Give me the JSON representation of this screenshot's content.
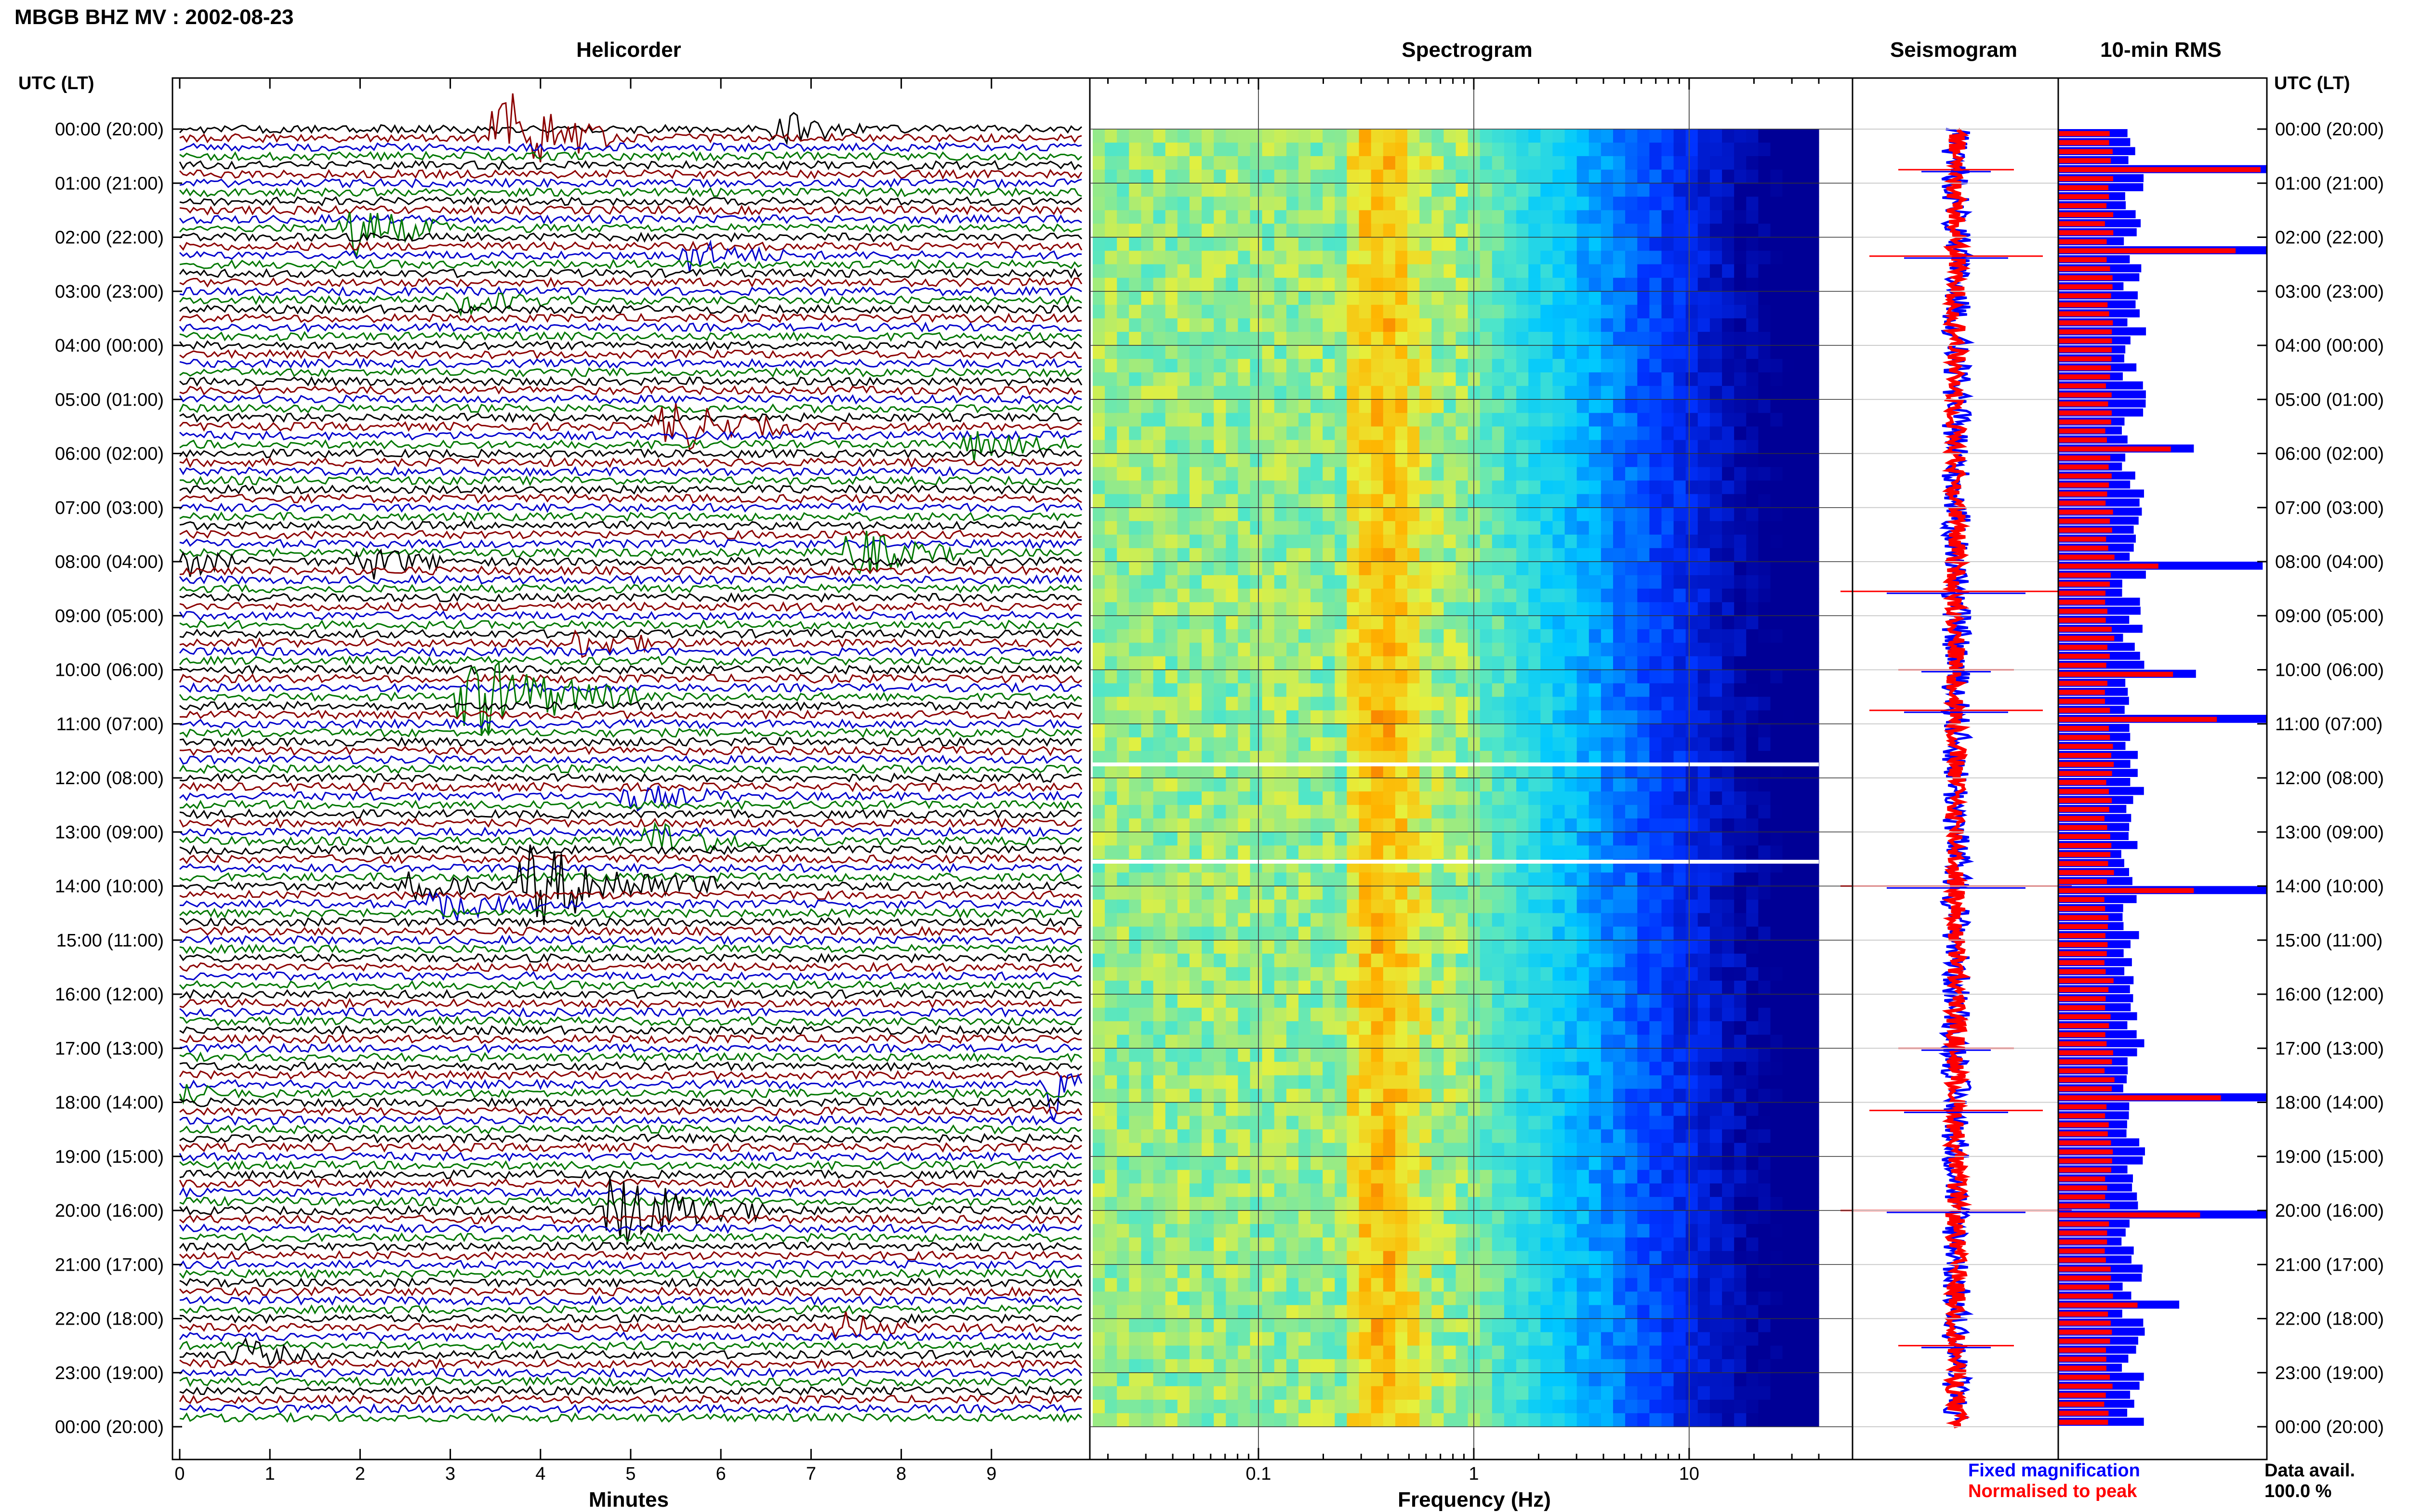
{
  "title": "MBGB BHZ MV : 2002-08-23",
  "utc_label": "UTC (LT)",
  "colors": {
    "trace_cycle": [
      "#000000",
      "#8b0000",
      "#0000cc",
      "#007700"
    ],
    "fixed_magnification": "#0000ff",
    "normalised_to_peak": "#ff0000",
    "grid": "#888888",
    "gap_line": "#ffffff"
  },
  "chart_data": [
    {
      "type": "line",
      "panel": "helicorder",
      "title": "Helicorder",
      "xlabel": "Minutes",
      "xlim": [
        0,
        10
      ],
      "x_ticks": [
        "0",
        "1",
        "2",
        "3",
        "4",
        "5",
        "6",
        "7",
        "8",
        "9"
      ],
      "rows_per_hour": 6,
      "row_minutes": 10,
      "time_labels": [
        "00:00 (20:00)",
        "01:00 (21:00)",
        "02:00 (22:00)",
        "03:00 (23:00)",
        "04:00 (00:00)",
        "05:00 (01:00)",
        "06:00 (02:00)",
        "07:00 (03:00)",
        "08:00 (04:00)",
        "09:00 (05:00)",
        "10:00 (06:00)",
        "11:00 (07:00)",
        "12:00 (08:00)",
        "13:00 (09:00)",
        "14:00 (10:00)",
        "15:00 (11:00)",
        "16:00 (12:00)",
        "17:00 (13:00)",
        "18:00 (14:00)",
        "19:00 (15:00)",
        "20:00 (16:00)",
        "21:00 (17:00)",
        "22:00 (18:00)",
        "23:00 (19:00)",
        "00:00 (20:00)"
      ],
      "events": [
        {
          "row": 0,
          "minute": 6.6,
          "duration_min": 1.0,
          "amplitude": 1.2
        },
        {
          "row": 1,
          "minute": 3.5,
          "duration_min": 1.3,
          "amplitude": 3.5
        },
        {
          "row": 11,
          "minute": 1.8,
          "duration_min": 1.2,
          "amplitude": 2.0
        },
        {
          "row": 14,
          "minute": 5.5,
          "duration_min": 1.2,
          "amplitude": 1.2
        },
        {
          "row": 19,
          "minute": 3.0,
          "duration_min": 1.2,
          "amplitude": 0.9
        },
        {
          "row": 33,
          "minute": 5.3,
          "duration_min": 1.5,
          "amplitude": 2.0
        },
        {
          "row": 35,
          "minute": 8.7,
          "duration_min": 1.2,
          "amplitude": 1.0
        },
        {
          "row": 47,
          "minute": 7.4,
          "duration_min": 1.2,
          "amplitude": 1.8
        },
        {
          "row": 48,
          "minute": 0.0,
          "duration_min": 0.6,
          "amplitude": 1.3
        },
        {
          "row": 48,
          "minute": 2.0,
          "duration_min": 1.0,
          "amplitude": 1.3
        },
        {
          "row": 57,
          "minute": 4.3,
          "duration_min": 1.3,
          "amplitude": 1.0
        },
        {
          "row": 63,
          "minute": 3.1,
          "duration_min": 2.0,
          "amplitude": 3.2
        },
        {
          "row": 74,
          "minute": 4.9,
          "duration_min": 1.3,
          "amplitude": 0.9
        },
        {
          "row": 79,
          "minute": 5.2,
          "duration_min": 1.3,
          "amplitude": 1.4
        },
        {
          "row": 84,
          "minute": 3.8,
          "duration_min": 2.2,
          "amplitude": 2.8
        },
        {
          "row": 84,
          "minute": 2.5,
          "duration_min": 0.8,
          "amplitude": 1.5
        },
        {
          "row": 86,
          "minute": 2.8,
          "duration_min": 1.2,
          "amplitude": 1.3
        },
        {
          "row": 106,
          "minute": 9.6,
          "duration_min": 0.4,
          "amplitude": 4.0
        },
        {
          "row": 107,
          "minute": 0.0,
          "duration_min": 0.4,
          "amplitude": 1.4
        },
        {
          "row": 120,
          "minute": 4.7,
          "duration_min": 1.8,
          "amplitude": 2.8
        },
        {
          "row": 136,
          "minute": 0.6,
          "duration_min": 0.9,
          "amplitude": 1.2
        },
        {
          "row": 133,
          "minute": 7.3,
          "duration_min": 0.9,
          "amplitude": 1.0
        }
      ]
    },
    {
      "type": "heatmap",
      "panel": "spectrogram",
      "title": "Spectrogram",
      "xlabel": "Frequency (Hz)",
      "x_scale": "log",
      "xlim": [
        0.017,
        40
      ],
      "x_ticks": [
        {
          "value": 0.1,
          "label": "0.1"
        },
        {
          "value": 1,
          "label": "1"
        },
        {
          "value": 10,
          "label": "10"
        }
      ],
      "gaps_utc_hour": [
        11.75,
        13.55
      ]
    },
    {
      "type": "line",
      "panel": "seismogram",
      "title": "Seismogram",
      "legend": [
        {
          "label": "Fixed magnification",
          "color": "#0000ff"
        },
        {
          "label": "Normalised to peak",
          "color": "#ff0000"
        }
      ],
      "spikes_utc_hour": [
        0.75,
        2.35,
        8.55,
        10.0,
        10.75,
        14.0,
        17.0,
        18.15,
        20.0,
        22.5
      ]
    },
    {
      "type": "bar",
      "panel": "rms",
      "title": "10-min RMS",
      "orientation": "horizontal",
      "bins": 144,
      "bin_minutes": 10,
      "baseline_blue": 0.35,
      "baseline_red": 0.24,
      "peaks": [
        {
          "bin": 4,
          "blue": 1.0,
          "red": 0.97
        },
        {
          "bin": 13,
          "blue": 1.0,
          "red": 0.85
        },
        {
          "bin": 48,
          "blue": 0.98,
          "red": 0.48
        },
        {
          "bin": 60,
          "blue": 0.66,
          "red": 0.55
        },
        {
          "bin": 65,
          "blue": 1.0,
          "red": 0.76
        },
        {
          "bin": 84,
          "blue": 1.0,
          "red": 0.65
        },
        {
          "bin": 107,
          "blue": 1.0,
          "red": 0.78
        },
        {
          "bin": 120,
          "blue": 1.0,
          "red": 0.68
        },
        {
          "bin": 35,
          "blue": 0.65,
          "red": 0.54
        },
        {
          "bin": 130,
          "blue": 0.58,
          "red": 0.38
        }
      ]
    }
  ],
  "data_availability": {
    "label": "Data avail.",
    "value": "100.0 %"
  }
}
